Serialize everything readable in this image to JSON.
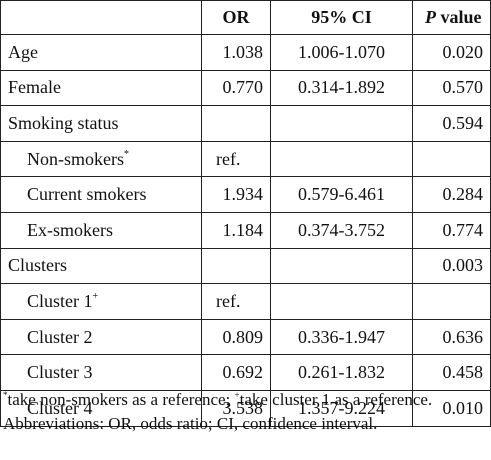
{
  "table": {
    "headers": [
      "",
      "OR",
      "95% CI",
      "value"
    ],
    "p_header_italic": "P",
    "rows": [
      {
        "label": "Age",
        "or": "1.038",
        "ci": "1.006-1.070",
        "p": "0.020",
        "indent": false,
        "sup": ""
      },
      {
        "label": "Female",
        "or": "0.770",
        "ci": "0.314-1.892",
        "p": "0.570",
        "indent": false,
        "sup": ""
      },
      {
        "label": "Smoking status",
        "or": "",
        "ci": "",
        "p": "0.594",
        "indent": false,
        "sup": ""
      },
      {
        "label": "Non-smokers",
        "or": "ref.",
        "ci": "",
        "p": "",
        "indent": true,
        "sup": "*"
      },
      {
        "label": "Current smokers",
        "or": "1.934",
        "ci": "0.579-6.461",
        "p": "0.284",
        "indent": true,
        "sup": ""
      },
      {
        "label": "Ex-smokers",
        "or": "1.184",
        "ci": "0.374-3.752",
        "p": "0.774",
        "indent": true,
        "sup": ""
      },
      {
        "label": "Clusters",
        "or": "",
        "ci": "",
        "p": "0.003",
        "indent": false,
        "sup": ""
      },
      {
        "label": "Cluster 1",
        "or": "ref.",
        "ci": "",
        "p": "",
        "indent": true,
        "sup": "+"
      },
      {
        "label": "Cluster 2",
        "or": "0.809",
        "ci": "0.336-1.947",
        "p": "0.636",
        "indent": true,
        "sup": ""
      },
      {
        "label": "Cluster 3",
        "or": "0.692",
        "ci": "0.261-1.832",
        "p": "0.458",
        "indent": true,
        "sup": ""
      },
      {
        "label": "Cluster 4",
        "or": "3.538",
        "ci": "1.357-9.224",
        "p": "0.010",
        "indent": true,
        "sup": ""
      }
    ]
  },
  "footnotes": {
    "line1": [
      {
        "sup": "*",
        "text": "take non-smokers as a reference; "
      },
      {
        "sup": "+",
        "text": "take cluster 1 as a reference."
      }
    ],
    "line2": "Abbreviations: OR, odds ratio; CI, confidence interval."
  }
}
